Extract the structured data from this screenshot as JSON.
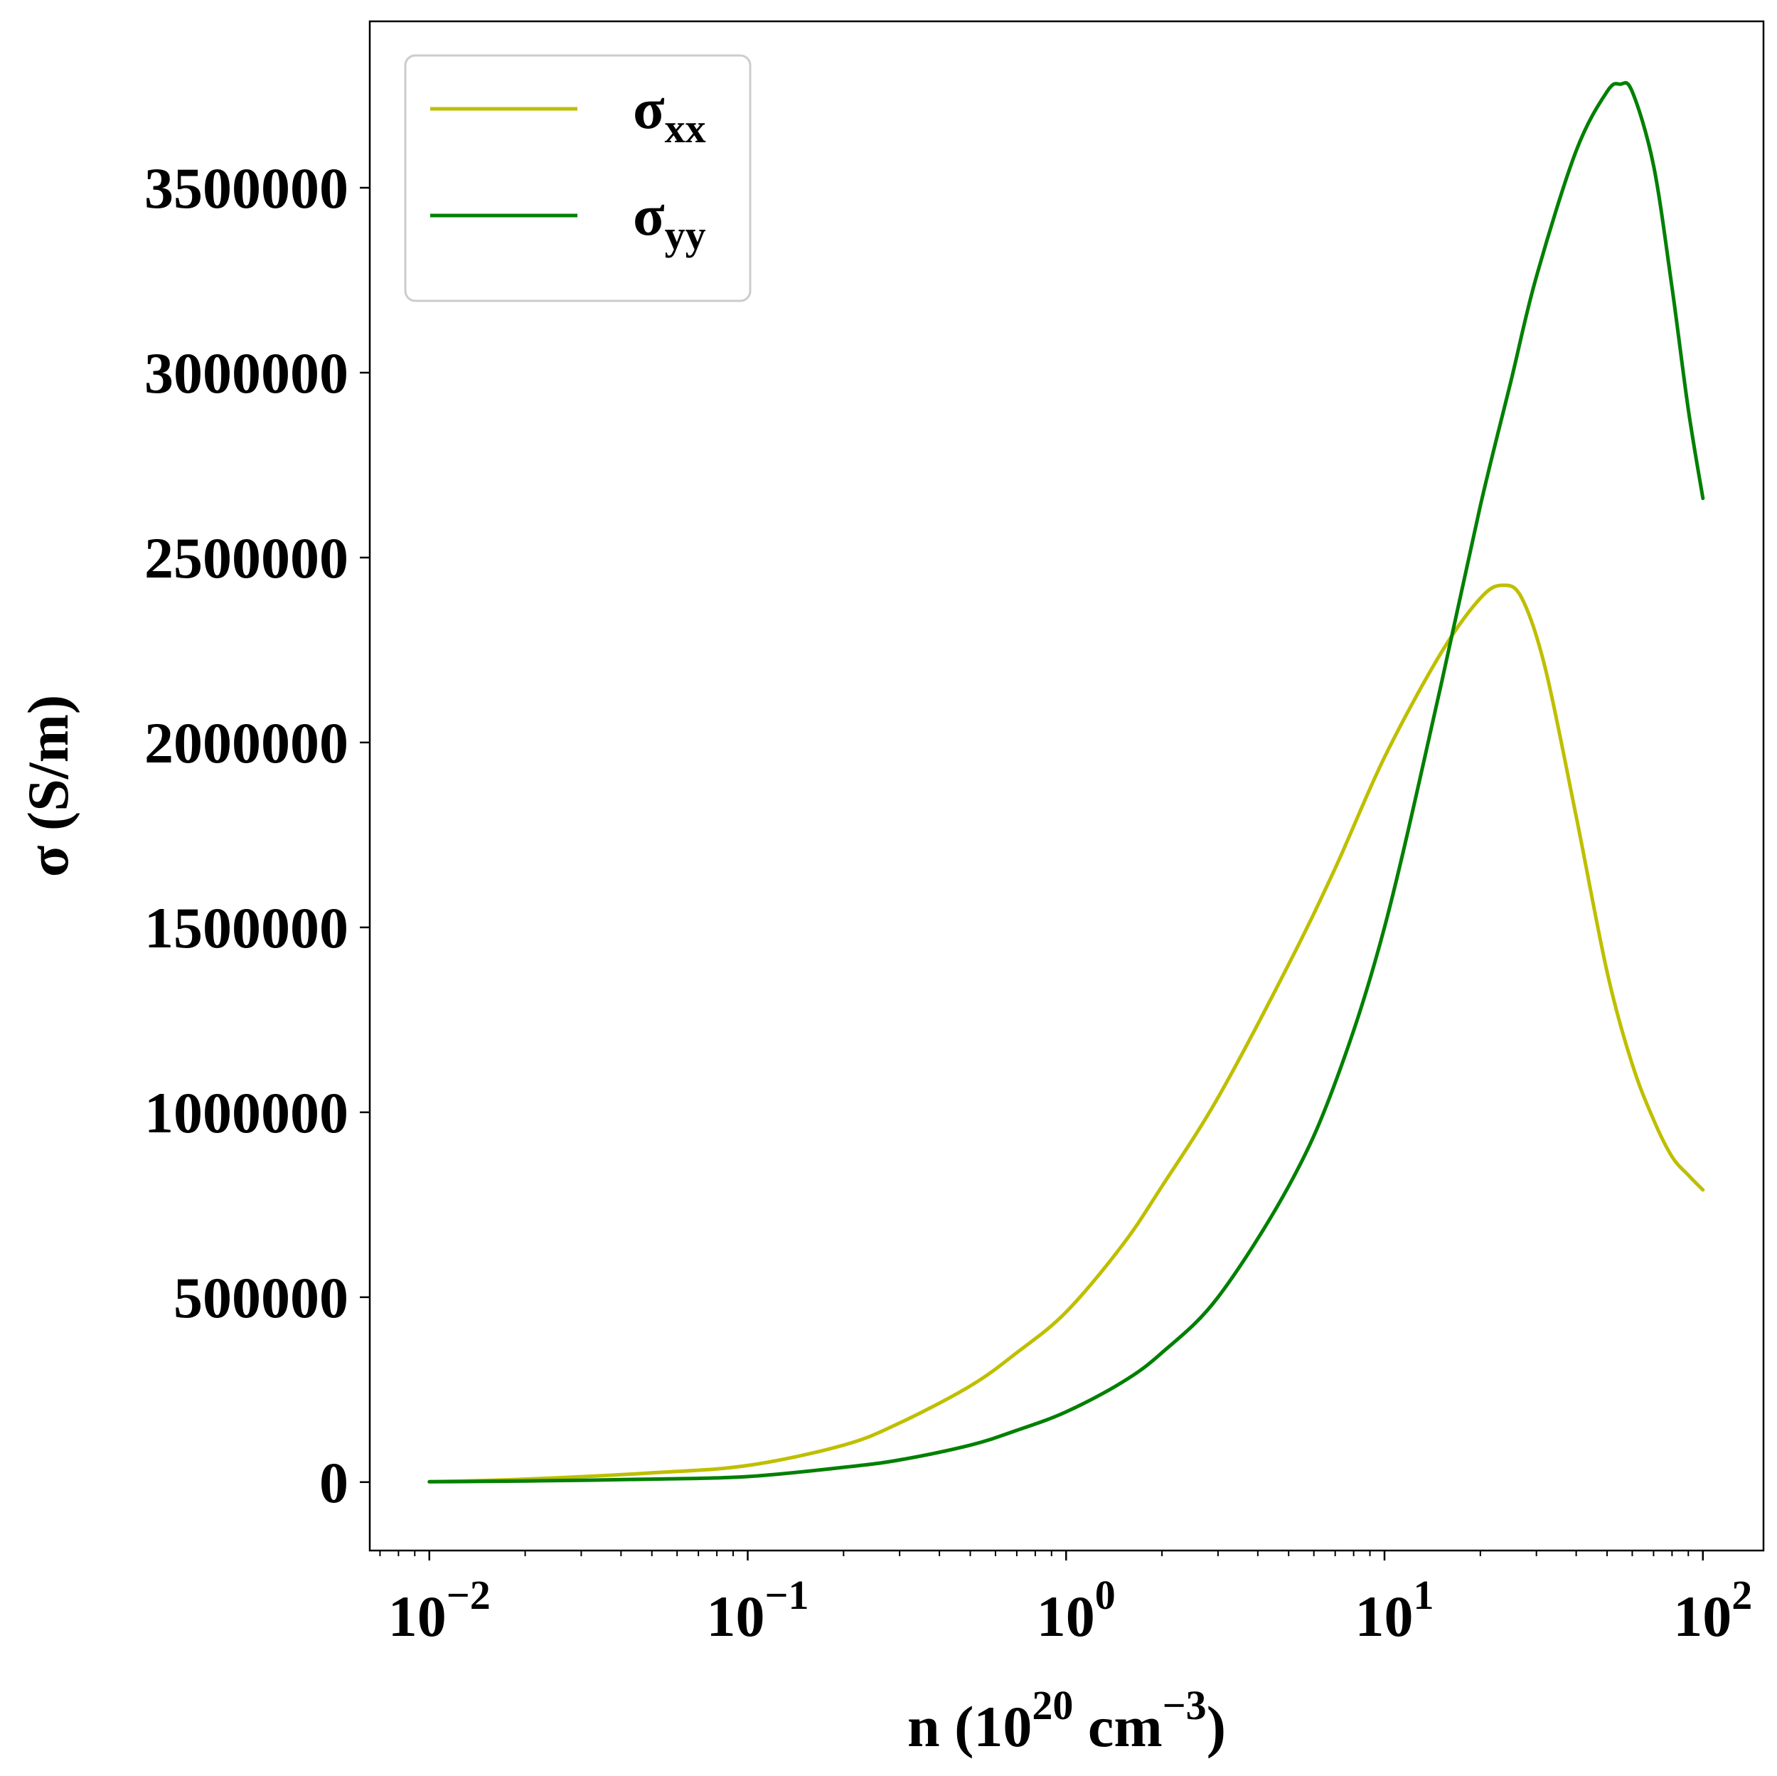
{
  "chart_data": {
    "type": "line",
    "title": "",
    "xlabel": {
      "base": "n (10",
      "sup1": "20",
      "mid": " cm",
      "sup2": "−3",
      "end": ")"
    },
    "ylabel": "σ (S/m)",
    "x_scale": "log",
    "xlim": [
      0.0065,
      155
    ],
    "ylim": [
      -185000,
      3950000
    ],
    "x_ticks": [
      {
        "value": 0.01,
        "base": "10",
        "exp": "−2"
      },
      {
        "value": 0.1,
        "base": "10",
        "exp": "−1"
      },
      {
        "value": 1,
        "base": "10",
        "exp": "0"
      },
      {
        "value": 10,
        "base": "10",
        "exp": "1"
      },
      {
        "value": 100,
        "base": "10",
        "exp": "2"
      }
    ],
    "y_ticks": [
      {
        "value": 0,
        "label": "0"
      },
      {
        "value": 500000,
        "label": "500000"
      },
      {
        "value": 1000000,
        "label": "1000000"
      },
      {
        "value": 1500000,
        "label": "1500000"
      },
      {
        "value": 2000000,
        "label": "2000000"
      },
      {
        "value": 2500000,
        "label": "2500000"
      },
      {
        "value": 3000000,
        "label": "3000000"
      },
      {
        "value": 3500000,
        "label": "3500000"
      }
    ],
    "legend": {
      "placement": "top-left"
    },
    "series": [
      {
        "name": "σxx",
        "name_base": "σ",
        "name_sub": "xx",
        "color": "#bfbf00",
        "x": [
          0.01,
          0.02,
          0.05,
          0.1,
          0.2,
          0.3,
          0.5,
          0.7,
          1,
          1.5,
          2,
          3,
          5,
          7,
          10,
          15,
          20,
          23.5,
          27,
          32,
          40,
          50,
          60,
          70,
          80,
          90,
          100
        ],
        "values": [
          1000,
          8000,
          25000,
          45000,
          100000,
          160000,
          260000,
          350000,
          460000,
          640000,
          800000,
          1040000,
          1400000,
          1660000,
          1960000,
          2240000,
          2390000,
          2425000,
          2390000,
          2200000,
          1800000,
          1380000,
          1130000,
          980000,
          880000,
          830000,
          790000
        ]
      },
      {
        "name": "σyy",
        "name_base": "σ",
        "name_sub": "yy",
        "color": "#008000",
        "x": [
          0.01,
          0.02,
          0.05,
          0.1,
          0.2,
          0.3,
          0.5,
          0.7,
          1,
          1.5,
          2,
          3,
          5,
          7,
          10,
          15,
          20,
          25,
          30,
          40,
          50,
          55,
          60,
          70,
          80,
          90,
          100
        ],
        "values": [
          1000,
          3000,
          8000,
          15000,
          40000,
          60000,
          100000,
          140000,
          190000,
          270000,
          350000,
          500000,
          800000,
          1080000,
          1500000,
          2150000,
          2640000,
          2980000,
          3260000,
          3600000,
          3760000,
          3780000,
          3760000,
          3560000,
          3230000,
          2900000,
          2660000
        ]
      }
    ]
  }
}
